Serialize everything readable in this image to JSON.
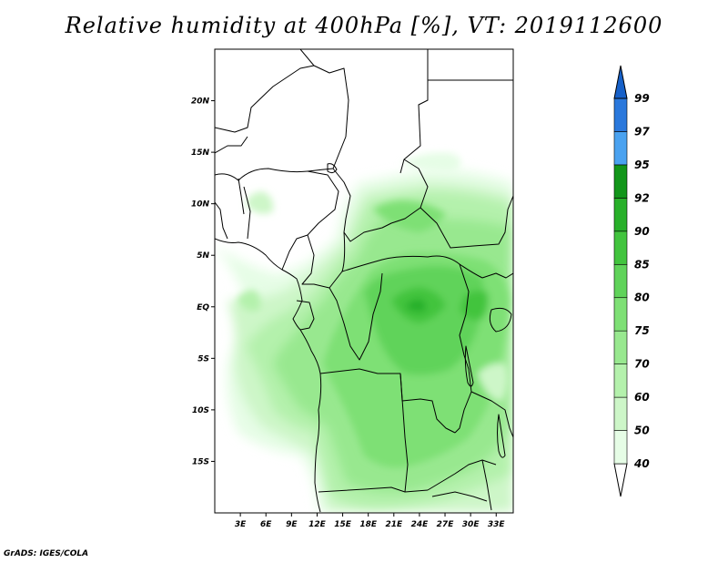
{
  "title": "Relative humidity at 400hPa [%], VT: 2019112600",
  "credit": "GrADS: IGES/COLA",
  "map": {
    "lon_range": [
      0,
      35
    ],
    "lat_range": [
      -20,
      25
    ],
    "lat_ticks": [
      {
        "value": 20,
        "label": "20N"
      },
      {
        "value": 15,
        "label": "15N"
      },
      {
        "value": 10,
        "label": "10N"
      },
      {
        "value": 5,
        "label": "5N"
      },
      {
        "value": 0,
        "label": "EQ"
      },
      {
        "value": -5,
        "label": "5S"
      },
      {
        "value": -10,
        "label": "10S"
      },
      {
        "value": -15,
        "label": "15S"
      }
    ],
    "lon_ticks": [
      {
        "value": 3,
        "label": "3E"
      },
      {
        "value": 6,
        "label": "6E"
      },
      {
        "value": 9,
        "label": "9E"
      },
      {
        "value": 12,
        "label": "12E"
      },
      {
        "value": 15,
        "label": "15E"
      },
      {
        "value": 18,
        "label": "18E"
      },
      {
        "value": 21,
        "label": "21E"
      },
      {
        "value": 24,
        "label": "24E"
      },
      {
        "value": 27,
        "label": "27E"
      },
      {
        "value": 30,
        "label": "30E"
      },
      {
        "value": 33,
        "label": "33E"
      }
    ]
  },
  "colorbar": {
    "levels": [
      "40",
      "50",
      "60",
      "70",
      "75",
      "80",
      "85",
      "90",
      "92",
      "95",
      "97",
      "99"
    ],
    "colors": [
      "#ffffff",
      "#e6fde6",
      "#cdf6c8",
      "#b4f1ac",
      "#98e88f",
      "#7ee075",
      "#60d35a",
      "#42c43e",
      "#28b02a",
      "#12961a",
      "#4aa2f0",
      "#2a78dc",
      "#1660c8"
    ]
  }
}
